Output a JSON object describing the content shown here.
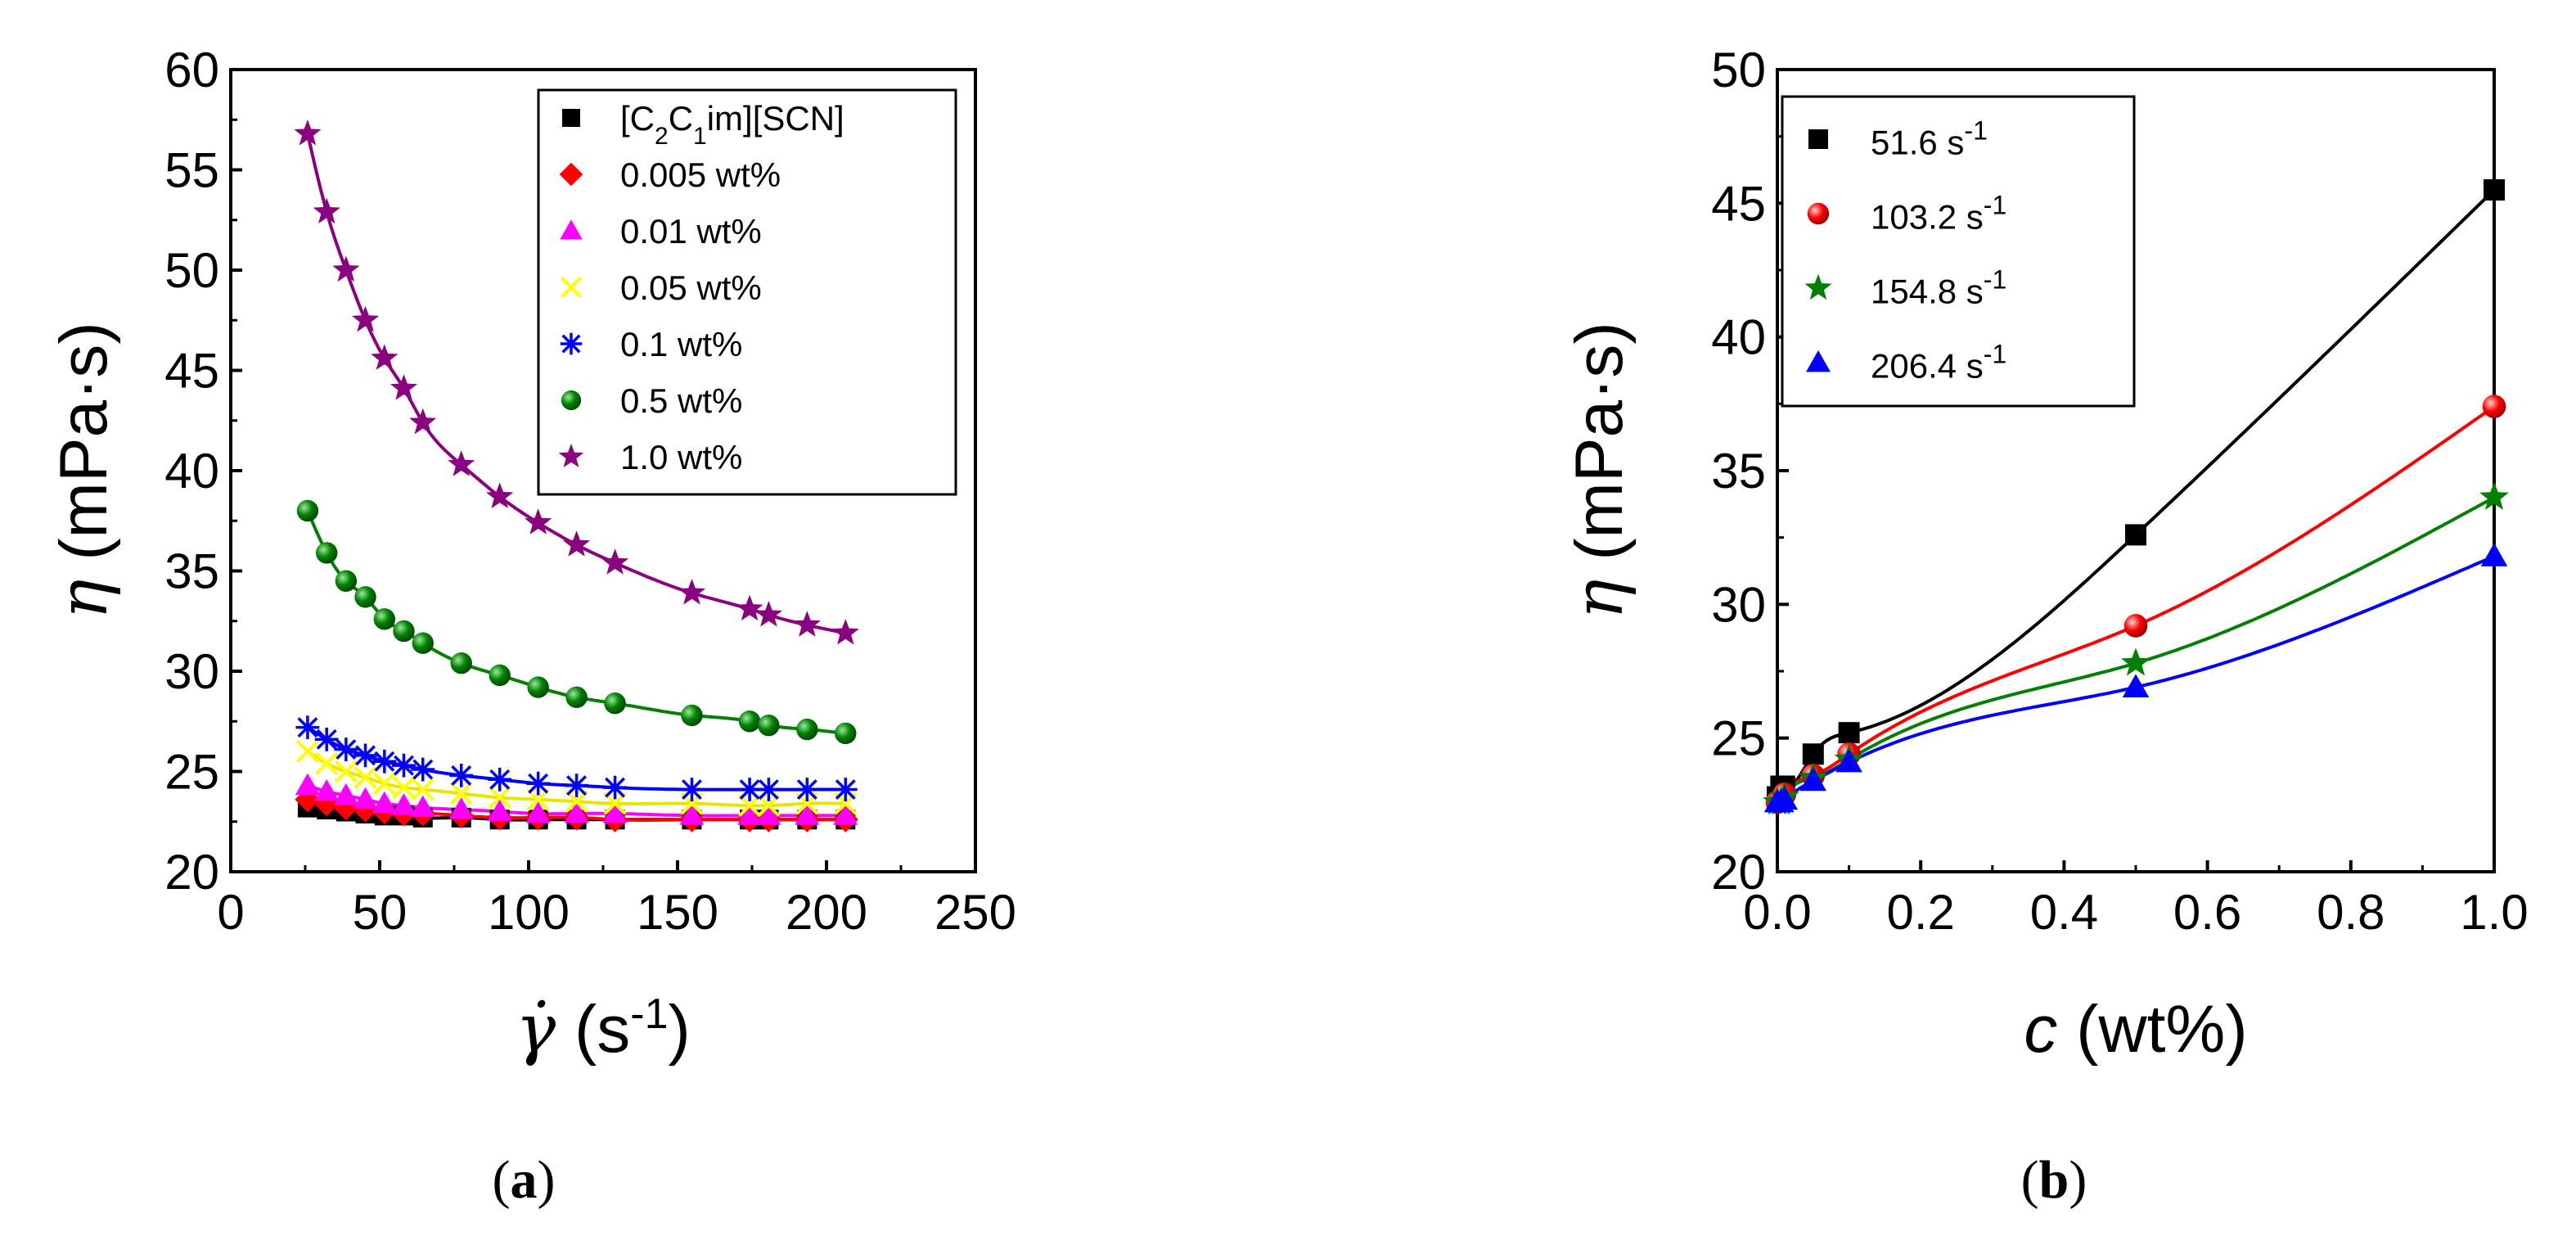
{
  "panels": {
    "a": {
      "label_open": "(",
      "label_letter": "a",
      "label_close": ")"
    },
    "b": {
      "label_open": "(",
      "label_letter": "b",
      "label_close": ")"
    }
  },
  "chart_data": [
    {
      "id": "a",
      "type": "scatter",
      "y_symbol": "η",
      "ylabel_rest": " (mPa·s)",
      "x_symbol": "γ̇",
      "xlabel_rest": " (s",
      "xlabel_sup": "-1",
      "xlabel_close": ")",
      "xlim": [
        0,
        250
      ],
      "ylim": [
        20,
        60
      ],
      "xticks": [
        0,
        50,
        100,
        150,
        200,
        250
      ],
      "yticks": [
        20,
        25,
        30,
        35,
        40,
        45,
        50,
        55,
        60
      ],
      "legend_position": "top-right",
      "legend_title_parts": [
        "[C",
        "2",
        "C",
        "1",
        "im][SCN]"
      ],
      "x": [
        25.8,
        32.2,
        38.7,
        45.2,
        51.6,
        58.1,
        64.5,
        77.4,
        90.3,
        103.2,
        116.1,
        129.0,
        154.8,
        174.2,
        180.6,
        193.5,
        206.4
      ],
      "series": [
        {
          "name": "[C2C1im][SCN]",
          "marker": "square",
          "color": "#000000",
          "values": [
            23.2,
            23.1,
            23.0,
            22.9,
            22.8,
            22.8,
            22.7,
            22.7,
            22.6,
            22.6,
            22.6,
            22.6,
            22.6,
            22.6,
            22.6,
            22.6,
            22.6
          ]
        },
        {
          "name": "0.005 wt%",
          "marker": "diamond",
          "color": "#ff0000",
          "values": [
            23.6,
            23.4,
            23.2,
            23.1,
            23.0,
            22.9,
            22.9,
            22.8,
            22.7,
            22.7,
            22.7,
            22.6,
            22.6,
            22.6,
            22.6,
            22.6,
            22.6
          ]
        },
        {
          "name": "0.01 wt%",
          "marker": "triangle",
          "color": "#ff00ff",
          "values": [
            24.3,
            24.0,
            23.8,
            23.6,
            23.4,
            23.3,
            23.2,
            23.1,
            23.0,
            22.9,
            22.9,
            22.9,
            22.8,
            22.8,
            22.8,
            22.8,
            22.8
          ]
        },
        {
          "name": "0.05 wt%",
          "marker": "x",
          "color": "#ffff00",
          "values": [
            26.0,
            25.4,
            25.0,
            24.7,
            24.4,
            24.2,
            24.1,
            23.9,
            23.7,
            23.6,
            23.5,
            23.4,
            23.4,
            23.3,
            23.3,
            23.4,
            23.4
          ]
        },
        {
          "name": "0.1 wt%",
          "marker": "asterisk",
          "color": "#0000ff",
          "values": [
            27.2,
            26.6,
            26.1,
            25.8,
            25.5,
            25.3,
            25.1,
            24.8,
            24.6,
            24.4,
            24.3,
            24.2,
            24.1,
            24.1,
            24.1,
            24.1,
            24.1
          ]
        },
        {
          "name": "0.5 wt%",
          "marker": "sphere",
          "color": "#008000",
          "values": [
            38.0,
            35.9,
            34.5,
            33.7,
            32.6,
            32.0,
            31.4,
            30.4,
            29.8,
            29.2,
            28.7,
            28.4,
            27.8,
            27.5,
            27.3,
            27.1,
            26.9
          ]
        },
        {
          "name": "1.0 wt%",
          "marker": "star",
          "color": "#8b0080",
          "values": [
            56.8,
            52.9,
            50.0,
            47.5,
            45.6,
            44.1,
            42.4,
            40.3,
            38.7,
            37.4,
            36.3,
            35.4,
            33.9,
            33.1,
            32.8,
            32.3,
            31.9
          ]
        }
      ]
    },
    {
      "id": "b",
      "type": "scatter",
      "y_symbol": "η",
      "ylabel_rest": " (mPa·s)",
      "x_symbol": "c",
      "xlabel_rest": " (wt%)",
      "xlim": [
        0,
        1.0
      ],
      "ylim": [
        20,
        50
      ],
      "xticks": [
        0.0,
        0.2,
        0.4,
        0.6,
        0.8,
        1.0
      ],
      "xtick_labels": [
        "0.0",
        "0.2",
        "0.4",
        "0.6",
        "0.8",
        "1.0"
      ],
      "yticks": [
        20,
        25,
        30,
        35,
        40,
        45,
        50
      ],
      "legend_position": "top-left",
      "x": [
        0,
        0.005,
        0.01,
        0.05,
        0.1,
        0.5,
        1.0
      ],
      "series": [
        {
          "name": "51.6 s-1",
          "label_main": "51.6 s",
          "label_sup": "-1",
          "marker": "square",
          "color": "#000000",
          "values": [
            22.8,
            23.2,
            23.2,
            24.4,
            25.2,
            32.6,
            45.5
          ]
        },
        {
          "name": "103.2 s-1",
          "label_main": "103.2 s",
          "label_sup": "-1",
          "marker": "sphere",
          "color": "#ff0000",
          "values": [
            22.6,
            22.7,
            22.9,
            23.6,
            24.4,
            29.2,
            37.4
          ]
        },
        {
          "name": "154.8 s-1",
          "label_main": "154.8 s",
          "label_sup": "-1",
          "marker": "star",
          "color": "#008000",
          "values": [
            22.6,
            22.6,
            22.8,
            23.5,
            24.2,
            27.8,
            34.0
          ]
        },
        {
          "name": "206.4 s-1",
          "label_main": "206.4 s",
          "label_sup": "-1",
          "marker": "triangle",
          "color": "#0000ff",
          "values": [
            22.6,
            22.6,
            22.7,
            23.4,
            24.1,
            26.9,
            31.8
          ]
        }
      ]
    }
  ]
}
